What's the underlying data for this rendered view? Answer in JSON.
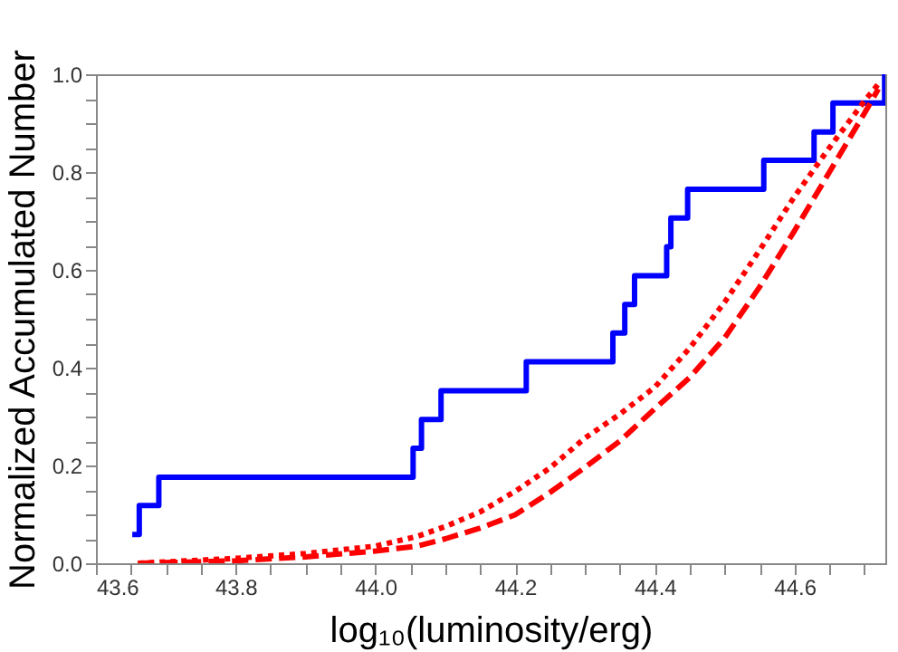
{
  "chart_data": {
    "type": "line",
    "xlabel": "log₁₀(luminosity/erg)",
    "ylabel": "Normalized Accumulated Number",
    "xlim": [
      43.6,
      44.73
    ],
    "ylim": [
      0,
      1
    ],
    "xticks": [
      {
        "value": 43.6,
        "label": "43.6"
      },
      {
        "value": 43.65,
        "label": null
      },
      {
        "value": 43.7,
        "label": null
      },
      {
        "value": 43.75,
        "label": null
      },
      43.8,
      {
        "value": 43.85,
        "label": null
      },
      {
        "value": 43.9,
        "label": null
      },
      {
        "value": 43.95,
        "label": null
      },
      {
        "value": 44.0,
        "label": "44.0"
      },
      {
        "value": 44.05,
        "label": null
      },
      {
        "value": 44.1,
        "label": null
      },
      {
        "value": 44.15,
        "label": null
      },
      44.2,
      {
        "value": 44.25,
        "label": null
      },
      {
        "value": 44.3,
        "label": null
      },
      {
        "value": 44.35,
        "label": null
      },
      44.4,
      {
        "value": 44.45,
        "label": null
      },
      {
        "value": 44.5,
        "label": null
      },
      {
        "value": 44.55,
        "label": null
      },
      44.6,
      {
        "value": 44.65,
        "label": null
      },
      {
        "value": 44.7,
        "label": null
      }
    ],
    "yticks": [
      {
        "value": 0.0,
        "label": "0.0"
      },
      {
        "value": 0.05,
        "label": null
      },
      {
        "value": 0.1,
        "label": null
      },
      {
        "value": 0.15,
        "label": null
      },
      0.2,
      {
        "value": 0.25,
        "label": null
      },
      {
        "value": 0.3,
        "label": null
      },
      {
        "value": 0.35,
        "label": null
      },
      0.4,
      {
        "value": 0.45,
        "label": null
      },
      {
        "value": 0.5,
        "label": null
      },
      {
        "value": 0.55,
        "label": null
      },
      0.6,
      {
        "value": 0.65,
        "label": null
      },
      {
        "value": 0.7,
        "label": null
      },
      {
        "value": 0.75,
        "label": null
      },
      0.8,
      {
        "value": 0.85,
        "label": null
      },
      {
        "value": 0.9,
        "label": null
      },
      {
        "value": 0.95,
        "label": null
      },
      {
        "value": 1.0,
        "label": "1.0"
      }
    ],
    "grid": false,
    "series": [
      {
        "type": "step",
        "color": "#0000ff",
        "line_style": "solid",
        "x": [
          43.652,
          43.662,
          43.69,
          44.054,
          44.066,
          44.094,
          44.216,
          44.34,
          44.357,
          44.371,
          44.417,
          44.423,
          44.447,
          44.556,
          44.628,
          44.655,
          44.729
        ],
        "values": [
          0.059,
          0.118,
          0.176,
          0.235,
          0.294,
          0.353,
          0.412,
          0.471,
          0.529,
          0.588,
          0.647,
          0.706,
          0.765,
          0.824,
          0.882,
          0.941,
          1.0
        ]
      },
      {
        "color": "#ff0000",
        "line_style": "dotted",
        "x": [
          43.66,
          43.8,
          43.9,
          44.0,
          44.06,
          44.1,
          44.15,
          44.2,
          44.25,
          44.3,
          44.35,
          44.4,
          44.45,
          44.5,
          44.55,
          44.6,
          44.65,
          44.7,
          44.72
        ],
        "values": [
          0.0,
          0.01,
          0.02,
          0.035,
          0.055,
          0.075,
          0.105,
          0.147,
          0.195,
          0.256,
          0.305,
          0.36,
          0.44,
          0.534,
          0.64,
          0.75,
          0.85,
          0.945,
          0.98
        ]
      },
      {
        "color": "#ff0000",
        "line_style": "dashed",
        "x": [
          43.66,
          43.8,
          43.9,
          44.0,
          44.06,
          44.1,
          44.15,
          44.2,
          44.25,
          44.3,
          44.35,
          44.4,
          44.45,
          44.5,
          44.55,
          44.6,
          44.65,
          44.7,
          44.72
        ],
        "values": [
          0.0,
          0.005,
          0.013,
          0.025,
          0.035,
          0.05,
          0.072,
          0.099,
          0.145,
          0.196,
          0.25,
          0.316,
          0.38,
          0.461,
          0.565,
          0.68,
          0.8,
          0.92,
          0.97
        ]
      }
    ]
  }
}
